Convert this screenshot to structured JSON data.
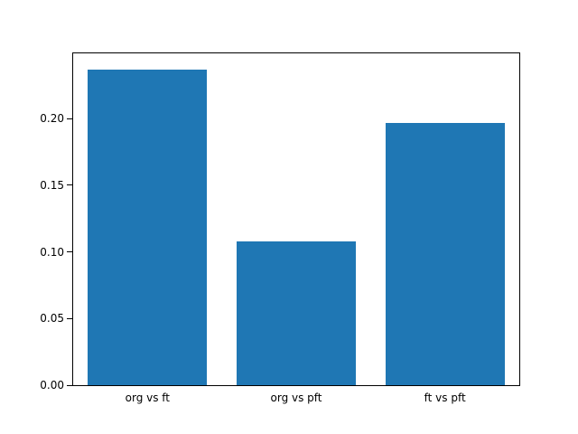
{
  "chart_data": {
    "type": "bar",
    "title": "",
    "xlabel": "",
    "ylabel": "",
    "categories": [
      "org vs ft",
      "org vs pft",
      "ft vs pft"
    ],
    "values": [
      0.237,
      0.108,
      0.197
    ],
    "ylim": [
      0,
      0.249
    ],
    "yticks": [
      "0.00",
      "0.05",
      "0.10",
      "0.15",
      "0.20"
    ],
    "ytick_values": [
      0.0,
      0.05,
      0.1,
      0.15,
      0.2
    ],
    "bar_color": "#1f77b4",
    "bar_width_fraction": 0.8,
    "grid": false,
    "legend": null,
    "background_color": "#ffffff",
    "spine_color": "#000000"
  }
}
